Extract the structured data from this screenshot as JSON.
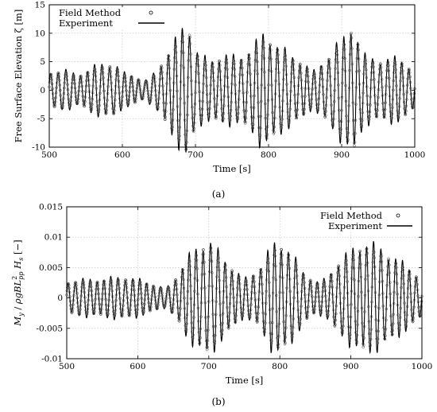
{
  "chart_data": [
    {
      "type": "line",
      "caption": "(a)",
      "xlabel": "Time [s]",
      "ylabel": "Free Surface Elevation ζ [m]",
      "xlim": [
        500,
        1000
      ],
      "ylim": [
        -10,
        15
      ],
      "xticks": [
        500,
        600,
        700,
        800,
        900,
        1000
      ],
      "yticks": [
        -10,
        -5,
        0,
        5,
        10,
        15
      ],
      "grid": true,
      "legend_position": "top-left",
      "series": [
        {
          "name": "Field Method",
          "marker": "circle",
          "style": "points"
        },
        {
          "name": "Experiment",
          "style": "line"
        }
      ],
      "envelope": {
        "t": [
          500,
          520,
          540,
          560,
          575,
          590,
          600,
          615,
          630,
          645,
          660,
          670,
          680,
          690,
          695,
          705,
          720,
          740,
          760,
          780,
          790,
          800,
          815,
          830,
          850,
          860,
          880,
          895,
          905,
          915,
          930,
          950,
          970,
          985,
          1000
        ],
        "amp": [
          3.0,
          3.5,
          2.5,
          4.0,
          4.5,
          4.5,
          3.0,
          2.5,
          1.5,
          3.0,
          6.0,
          8.0,
          10.0,
          12.0,
          8.5,
          6.0,
          5.0,
          6.0,
          5.5,
          7.5,
          9.5,
          9.0,
          7.5,
          6.0,
          4.5,
          3.0,
          5.5,
          8.0,
          9.0,
          11.5,
          6.0,
          5.0,
          5.5,
          5.0,
          3.0
        ]
      },
      "period_s": 10
    },
    {
      "type": "line",
      "caption": "(b)",
      "xlabel": "Time [s]",
      "ylabel": "M_y / ρgBL²_pp H_s [−]",
      "xlim": [
        500,
        1000
      ],
      "ylim": [
        -0.01,
        0.015
      ],
      "xticks": [
        500,
        600,
        700,
        800,
        900,
        1000
      ],
      "yticks": [
        -0.01,
        -0.005,
        0,
        0.005,
        0.01,
        0.015
      ],
      "grid": true,
      "legend_position": "top-right",
      "series": [
        {
          "name": "Field Method",
          "marker": "circle",
          "style": "points"
        },
        {
          "name": "Experiment",
          "style": "line"
        }
      ],
      "envelope": {
        "t": [
          500,
          520,
          540,
          560,
          580,
          600,
          620,
          640,
          655,
          670,
          685,
          700,
          715,
          730,
          750,
          770,
          790,
          800,
          815,
          830,
          850,
          865,
          880,
          900,
          920,
          940,
          960,
          980,
          1000
        ],
        "amp": [
          0.0025,
          0.003,
          0.0028,
          0.0032,
          0.0033,
          0.003,
          0.0022,
          0.0015,
          0.0035,
          0.0065,
          0.008,
          0.0095,
          0.007,
          0.0052,
          0.003,
          0.0045,
          0.0085,
          0.009,
          0.0075,
          0.0045,
          0.0025,
          0.003,
          0.0055,
          0.0075,
          0.009,
          0.008,
          0.0065,
          0.005,
          0.003
        ]
      },
      "period_s": 10
    }
  ],
  "tick_labels": {
    "a_y": [
      "-10",
      "-5",
      "0",
      "5",
      "10",
      "15"
    ],
    "b_y": [
      "-0.01",
      "-0.005",
      "0",
      "0.005",
      "0.01",
      "0.015"
    ],
    "x": [
      "500",
      "600",
      "700",
      "800",
      "900",
      "1000"
    ]
  }
}
